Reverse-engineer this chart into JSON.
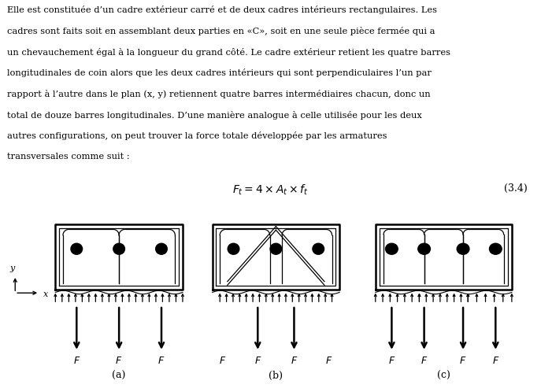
{
  "text_lines": [
    "Elle est constituée d’un cadre extérieur carré et de deux cadres intérieurs rectangulaires. Les",
    "cadres sont faits soit en assemblant deux parties en «C», soit en une seule pièce fermée qui a",
    "un chevauchement égal à la longueur du grand côté. Le cadre extérieur retient les quatre barres",
    "longitudinales de coin alors que les deux cadres intérieurs qui sont perpendiculaires l’un par",
    "rapport à l’autre dans le plan (x, y) retiennent quatre barres intermédiaires chacun, donc un",
    "total de douze barres longitudinales. D’une manière analogue à celle utilisée pour les deux",
    "autres configurations, on peut trouver la force totale développée par les armatures",
    "transversales comme suit :"
  ],
  "equation": "$F_t = 4 \\times A_t \\times f_t$",
  "eq_number": "(3.4)",
  "sub_a": "(a)",
  "sub_b": "(b)",
  "sub_c": "(c)",
  "bg_color": "#ffffff",
  "text_color": "#000000",
  "fig_width": 6.87,
  "fig_height": 4.93
}
